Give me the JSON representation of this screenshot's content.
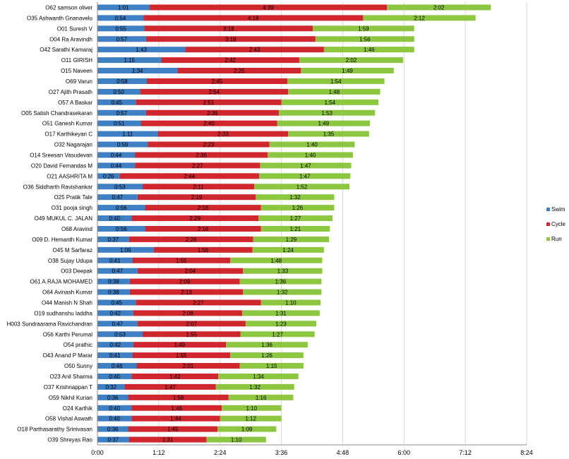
{
  "chart_data": {
    "type": "bar",
    "orientation": "horizontal",
    "stacked": true,
    "value_unit": "h:mm",
    "xlim": [
      "0:00",
      "8:24"
    ],
    "x_ticks": [
      "0:00",
      "1:12",
      "2:24",
      "3:36",
      "4:48",
      "6:00",
      "7:12",
      "8:24"
    ],
    "grid": "vertical gridlines",
    "legend_position": "right",
    "colors": {
      "Swim": "#3f7fc4",
      "Cycle": "#d0262e",
      "Run": "#8dc641"
    },
    "categories": [
      "O62 samson oliver",
      "O35 Ashwanth Gnanavelu",
      "O01 Suresh V",
      "O04 Ra Aravindh",
      "O42 Sarathi Kamaraj",
      "O11 GIRISH",
      "O15 Naveen",
      "O69 Varun",
      "O27 Ajith Prasath",
      "O57 A Baskar",
      "O05 Satish Chandrasekaran",
      "O51 Ganesh Kumar",
      "O17 Karthikeyan C",
      "O32 Nagarajan",
      "O14 Sreesan Vasudevan",
      "O20 David Fernandas M",
      "O21 AASHRITA M",
      "O36 Siddharth Ravishankar",
      "O25 Pratik Tale",
      "O31 pooja singh",
      "O49 MUKUL C. JALAN",
      "O68 Aravind",
      "O09 D. Hemanth Kumar",
      "O45 M Sarfaraz",
      "O38 Sujay Udupa",
      "O03 Deepak",
      "O61 A.RAJA MOHAMED",
      "O64 Avinash Kumar",
      "O44 Manish N Shah",
      "O19 sudhanshu laddha",
      "H003 Sundraarama Ravichandran",
      "O56 Karthi Perumal",
      "O54 prathic",
      "O43 Anand P Marar",
      "O50 Sunny",
      "O23 Anil Sharma",
      "O37 Krishnappan T",
      "O59 Nikhil Kurian",
      "O24 Karthik",
      "O58 Vishal Aswath",
      "O18 Parthasarathy Srinivasan",
      "O39 Shreyas Rao"
    ],
    "series": [
      {
        "name": "Swim",
        "values": [
          "1:01",
          "0:54",
          "0:55",
          "0:57",
          "1:43",
          "1:15",
          "1:34",
          "0:58",
          "0:50",
          "0:45",
          "0:57",
          "0:51",
          "1:11",
          "0:59",
          "0:44",
          "0:44",
          "0:26",
          "0:53",
          "0:47",
          "0:56",
          "0:40",
          "0:56",
          "0:37",
          "1:06",
          "0:41",
          "0:47",
          "0:38",
          "0:38",
          "0:45",
          "0:42",
          "0:47",
          "0:53",
          "0:42",
          "0:41",
          "0:46",
          "0:40",
          "0:32",
          "0:36",
          "0:40",
          "0:40",
          "0:36",
          "0:37"
        ]
      },
      {
        "name": "Cycle",
        "values": [
          "4:39",
          "4:18",
          "3:18",
          "3:19",
          "2:43",
          "2:42",
          "2:25",
          "2:45",
          "2:54",
          "2:51",
          "2:36",
          "2:40",
          "2:33",
          "2:23",
          "2:36",
          "2:27",
          "2:44",
          "2:11",
          "2:19",
          "2:16",
          "2:29",
          "2:16",
          "2:26",
          "1:56",
          "1:55",
          "2:04",
          "2:09",
          "2:13",
          "2:27",
          "2:08",
          "2:07",
          "1:55",
          "1:49",
          "1:55",
          "2:01",
          "1:42",
          "1:47",
          "1:58",
          "1:46",
          "1:44",
          "1:45",
          "1:31"
        ]
      },
      {
        "name": "Run",
        "values": [
          "2:02",
          "2:12",
          "1:59",
          "1:56",
          "1:46",
          "2:02",
          "1:49",
          "1:54",
          "1:48",
          "1:54",
          "1:53",
          "1:49",
          "1:35",
          "1:40",
          "1:40",
          "1:47",
          "1:47",
          "1:52",
          "1:32",
          "1:26",
          "1:27",
          "1:21",
          "1:29",
          "1:24",
          "1:48",
          "1:33",
          "1:36",
          "1:32",
          "1:10",
          "1:31",
          "1:23",
          "1:27",
          "1:36",
          "1:26",
          "1:15",
          "1:34",
          "1:32",
          "1:16",
          "1:10",
          "1:12",
          "1:09",
          "1:10"
        ]
      }
    ]
  }
}
